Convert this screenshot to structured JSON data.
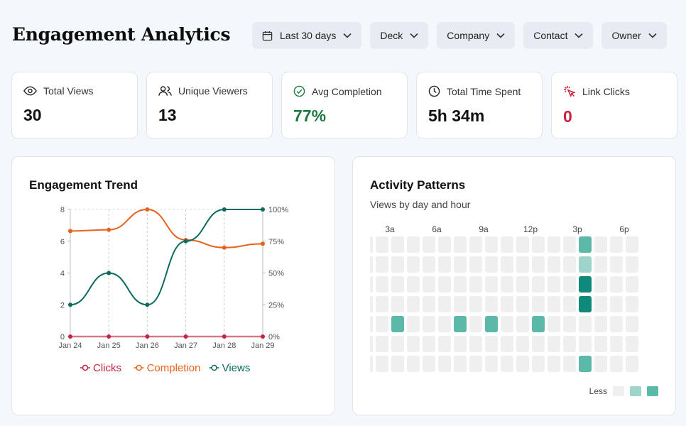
{
  "page": {
    "title": "Engagement Analytics"
  },
  "filters": [
    {
      "label": "Last 30 days",
      "icon": "calendar-icon"
    },
    {
      "label": "Deck"
    },
    {
      "label": "Company"
    },
    {
      "label": "Contact"
    },
    {
      "label": "Owner"
    }
  ],
  "stats": [
    {
      "label": "Total Views",
      "value": "30",
      "icon": "eye-icon",
      "color": "#111111"
    },
    {
      "label": "Unique Viewers",
      "value": "13",
      "icon": "users-icon",
      "color": "#111111"
    },
    {
      "label": "Avg Completion",
      "value": "77%",
      "icon": "check-circle-icon",
      "color": "#1d7a3e"
    },
    {
      "label": "Total Time Spent",
      "value": "5h 34m",
      "icon": "clock-icon",
      "color": "#111111"
    },
    {
      "label": "Link Clicks",
      "value": "0",
      "icon": "cursor-click-icon",
      "color": "#c8243f"
    }
  ],
  "trend": {
    "title": "Engagement Trend"
  },
  "activity": {
    "title": "Activity Patterns",
    "subtitle": "Views by day and hour",
    "hour_labels": [
      "3a",
      "6a",
      "9a",
      "12p",
      "3p",
      "6p"
    ],
    "legend_less": "Less",
    "levels": [
      "#efefef",
      "#9fd4ca",
      "#5cb8a8",
      "#0f8a7a"
    ],
    "visible_columns": 18,
    "cells": [
      {
        "row": 0,
        "col": 14,
        "level": 2
      },
      {
        "row": 1,
        "col": 14,
        "level": 1
      },
      {
        "row": 2,
        "col": 14,
        "level": 3
      },
      {
        "row": 3,
        "col": 14,
        "level": 3
      },
      {
        "row": 4,
        "col": 2,
        "level": 2
      },
      {
        "row": 4,
        "col": 6,
        "level": 2
      },
      {
        "row": 4,
        "col": 8,
        "level": 2
      },
      {
        "row": 4,
        "col": 11,
        "level": 2
      },
      {
        "row": 6,
        "col": 14,
        "level": 2
      }
    ]
  },
  "chart_data": {
    "type": "line",
    "categories": [
      "Jan 24",
      "Jan 25",
      "Jan 26",
      "Jan 27",
      "Jan 28",
      "Jan 29"
    ],
    "left_ticks": [
      0,
      2,
      4,
      6,
      8
    ],
    "right_ticks": [
      "0%",
      "25%",
      "50%",
      "75%",
      "100%"
    ],
    "ylim_left": [
      0,
      8
    ],
    "ylim_right": [
      0,
      100
    ],
    "grid": "vertical-dashed",
    "legend_position": "bottom",
    "series": [
      {
        "name": "Clicks",
        "axis": "left",
        "color": "#c8243f",
        "values": [
          0,
          0,
          0,
          0,
          0,
          0
        ]
      },
      {
        "name": "Completion",
        "axis": "right",
        "color": "#e8621c",
        "values": [
          83,
          84,
          100,
          76,
          70,
          73
        ]
      },
      {
        "name": "Views",
        "axis": "left",
        "color": "#0c6b5f",
        "values": [
          2,
          4,
          2,
          6,
          8,
          8
        ]
      }
    ]
  }
}
